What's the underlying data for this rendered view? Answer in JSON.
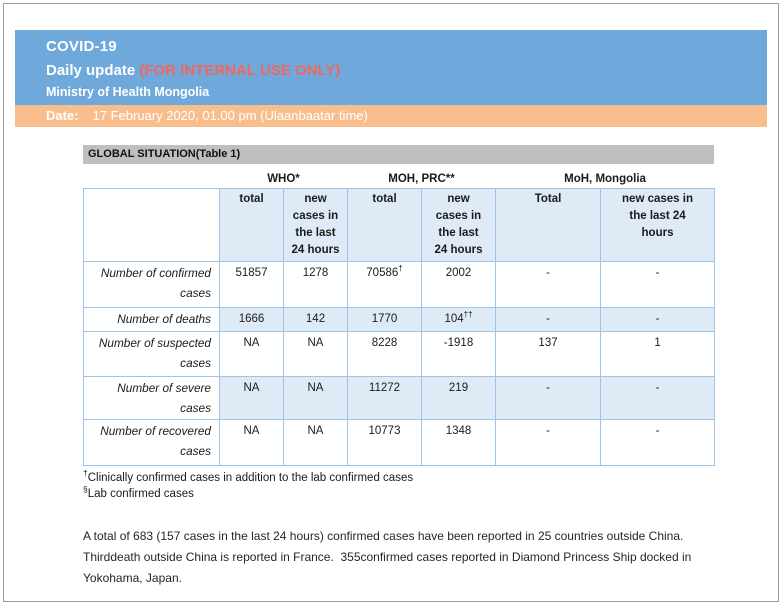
{
  "header": {
    "title": "COVID-19",
    "subtitle": "Daily update ",
    "internal_note": "(FOR INTERNAL USE ONLY)",
    "org": "Ministry of Health Mongolia",
    "date_label": "Date:",
    "date_value": "17 February 2020, 01.00 pm (Ulaanbaatar time)"
  },
  "section_title": "GLOBAL SITUATION(Table 1)",
  "table": {
    "groups": [
      "WHO*",
      "MOH, PRC**",
      "MoH, Mongolia"
    ],
    "subheaders": [
      "total",
      "new cases in the last 24 hours",
      "total",
      "new cases in the last 24 hours",
      "Total",
      "new cases in the last 24 hours"
    ],
    "rows": [
      {
        "label": "Number of confirmed cases",
        "shaded": false,
        "values": [
          "51857",
          "1278",
          {
            "v": "70586",
            "sup": "†"
          },
          "2002",
          "-",
          "-"
        ]
      },
      {
        "label": "Number of deaths",
        "shaded": true,
        "values": [
          "1666",
          "142",
          "1770",
          {
            "v": "104",
            "sup": "††"
          },
          "-",
          "-"
        ]
      },
      {
        "label": "Number of suspected cases",
        "shaded": false,
        "values": [
          "NA",
          "NA",
          "8228",
          "-1918",
          "137",
          "1"
        ]
      },
      {
        "label": "Number of severe cases",
        "shaded": true,
        "values": [
          "NA",
          "NA",
          "11272",
          "219",
          "-",
          "-"
        ]
      },
      {
        "label": "Number of recovered cases",
        "shaded": false,
        "values": [
          "NA",
          "NA",
          "10773",
          "1348",
          "-",
          "-"
        ]
      }
    ]
  },
  "footnotes": [
    {
      "mark": "†",
      "text": "Clinically confirmed cases in addition to the lab confirmed cases"
    },
    {
      "mark": "§",
      "text": "Lab confirmed cases"
    }
  ],
  "paragraph": "A total of 683 (157 cases in the last 24 hours) confirmed cases have been reported in 25 countries outside China. Thirddeath outside China is reported in France.  355confirmed cases reported in Diamond Princess Ship docked in Yokohama, Japan.",
  "colors": {
    "banner_blue": "#6FA9DC",
    "banner_orange": "#F9BE8E",
    "internal_note_red": "#F4655C",
    "section_bar_gray": "#BFBFBF",
    "cell_shade_blue": "#DEEAF6",
    "table_border_blue": "#9DC3E6"
  }
}
